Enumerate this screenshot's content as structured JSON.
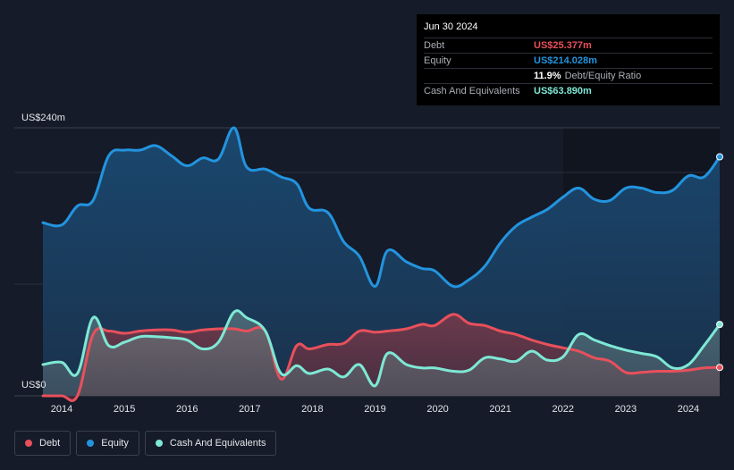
{
  "tooltip": {
    "date": "Jun 30 2024",
    "debt_label": "Debt",
    "debt_value": "US$25.377m",
    "equity_label": "Equity",
    "equity_value": "US$214.028m",
    "ratio_value": "11.9%",
    "ratio_label": "Debt/Equity Ratio",
    "cash_label": "Cash And Equivalents",
    "cash_value": "US$63.890m"
  },
  "legend": {
    "debt": "Debt",
    "equity": "Equity",
    "cash": "Cash And Equivalents"
  },
  "colors": {
    "debt": "#e8505b",
    "equity": "#2394df",
    "cash": "#7ee8d5",
    "background": "#151b28"
  },
  "chart_data": {
    "type": "area",
    "title": "",
    "xlabel": "",
    "ylabel": "",
    "y_top_label": "US$240m",
    "y_bottom_label": "US$0",
    "ylim": [
      0,
      240
    ],
    "xlim": [
      2013.7,
      2024.5
    ],
    "x_tick_labels": [
      "2014",
      "2015",
      "2016",
      "2017",
      "2018",
      "2019",
      "2020",
      "2021",
      "2022",
      "2023",
      "2024"
    ],
    "x_tick_values": [
      2014,
      2015,
      2016,
      2017,
      2018,
      2019,
      2020,
      2021,
      2022,
      2023,
      2024
    ],
    "series": [
      {
        "name": "Equity",
        "points": [
          [
            2013.7,
            155
          ],
          [
            2014.0,
            153
          ],
          [
            2014.25,
            170
          ],
          [
            2014.5,
            175
          ],
          [
            2014.75,
            215
          ],
          [
            2015.0,
            220
          ],
          [
            2015.25,
            220
          ],
          [
            2015.5,
            224
          ],
          [
            2015.75,
            215
          ],
          [
            2016.0,
            206
          ],
          [
            2016.25,
            213
          ],
          [
            2016.5,
            212
          ],
          [
            2016.75,
            240
          ],
          [
            2016.95,
            205
          ],
          [
            2017.25,
            203
          ],
          [
            2017.5,
            196
          ],
          [
            2017.75,
            190
          ],
          [
            2017.95,
            168
          ],
          [
            2018.25,
            164
          ],
          [
            2018.5,
            138
          ],
          [
            2018.75,
            125
          ],
          [
            2019.0,
            98
          ],
          [
            2019.2,
            130
          ],
          [
            2019.5,
            120
          ],
          [
            2019.75,
            114
          ],
          [
            2019.95,
            112
          ],
          [
            2020.25,
            98
          ],
          [
            2020.5,
            104
          ],
          [
            2020.75,
            116
          ],
          [
            2021.0,
            137
          ],
          [
            2021.25,
            152
          ],
          [
            2021.5,
            160
          ],
          [
            2021.75,
            167
          ],
          [
            2022.0,
            178
          ],
          [
            2022.25,
            186
          ],
          [
            2022.5,
            176
          ],
          [
            2022.75,
            175
          ],
          [
            2023.0,
            186
          ],
          [
            2023.25,
            186
          ],
          [
            2023.5,
            182
          ],
          [
            2023.75,
            184
          ],
          [
            2024.0,
            197
          ],
          [
            2024.25,
            196
          ],
          [
            2024.5,
            214
          ]
        ]
      },
      {
        "name": "Debt",
        "points": [
          [
            2013.7,
            0
          ],
          [
            2014.0,
            0
          ],
          [
            2014.25,
            0
          ],
          [
            2014.5,
            55
          ],
          [
            2014.75,
            58
          ],
          [
            2015.0,
            56
          ],
          [
            2015.25,
            58
          ],
          [
            2015.5,
            59
          ],
          [
            2015.75,
            59
          ],
          [
            2016.0,
            57
          ],
          [
            2016.25,
            59
          ],
          [
            2016.5,
            60
          ],
          [
            2016.75,
            60
          ],
          [
            2016.95,
            58
          ],
          [
            2017.25,
            58
          ],
          [
            2017.5,
            15
          ],
          [
            2017.75,
            45
          ],
          [
            2017.95,
            42
          ],
          [
            2018.25,
            46
          ],
          [
            2018.5,
            47
          ],
          [
            2018.75,
            58
          ],
          [
            2019.0,
            57
          ],
          [
            2019.2,
            58
          ],
          [
            2019.5,
            60
          ],
          [
            2019.75,
            64
          ],
          [
            2019.95,
            63
          ],
          [
            2020.25,
            73
          ],
          [
            2020.5,
            65
          ],
          [
            2020.75,
            63
          ],
          [
            2021.0,
            58
          ],
          [
            2021.25,
            55
          ],
          [
            2021.5,
            50
          ],
          [
            2021.75,
            46
          ],
          [
            2022.0,
            43
          ],
          [
            2022.25,
            40
          ],
          [
            2022.5,
            34
          ],
          [
            2022.75,
            31
          ],
          [
            2023.0,
            21
          ],
          [
            2023.25,
            21
          ],
          [
            2023.5,
            22
          ],
          [
            2023.75,
            22
          ],
          [
            2024.0,
            23
          ],
          [
            2024.25,
            25
          ],
          [
            2024.5,
            25.4
          ]
        ]
      },
      {
        "name": "Cash And Equivalents",
        "points": [
          [
            2013.7,
            28
          ],
          [
            2014.0,
            30
          ],
          [
            2014.25,
            20
          ],
          [
            2014.5,
            70
          ],
          [
            2014.75,
            45
          ],
          [
            2015.0,
            48
          ],
          [
            2015.25,
            53
          ],
          [
            2015.5,
            53
          ],
          [
            2015.75,
            52
          ],
          [
            2016.0,
            50
          ],
          [
            2016.25,
            42
          ],
          [
            2016.5,
            48
          ],
          [
            2016.75,
            75
          ],
          [
            2016.95,
            70
          ],
          [
            2017.25,
            58
          ],
          [
            2017.5,
            20
          ],
          [
            2017.75,
            27
          ],
          [
            2017.95,
            20
          ],
          [
            2018.25,
            24
          ],
          [
            2018.5,
            17
          ],
          [
            2018.75,
            28
          ],
          [
            2019.0,
            9
          ],
          [
            2019.2,
            38
          ],
          [
            2019.5,
            28
          ],
          [
            2019.75,
            25
          ],
          [
            2019.95,
            25
          ],
          [
            2020.25,
            22
          ],
          [
            2020.5,
            23
          ],
          [
            2020.75,
            34
          ],
          [
            2021.0,
            33
          ],
          [
            2021.25,
            31
          ],
          [
            2021.5,
            40
          ],
          [
            2021.75,
            32
          ],
          [
            2022.0,
            35
          ],
          [
            2022.25,
            55
          ],
          [
            2022.5,
            50
          ],
          [
            2022.75,
            45
          ],
          [
            2023.0,
            41
          ],
          [
            2023.25,
            38
          ],
          [
            2023.5,
            35
          ],
          [
            2023.75,
            25
          ],
          [
            2024.0,
            28
          ],
          [
            2024.25,
            45
          ],
          [
            2024.5,
            63.9
          ]
        ]
      }
    ]
  }
}
